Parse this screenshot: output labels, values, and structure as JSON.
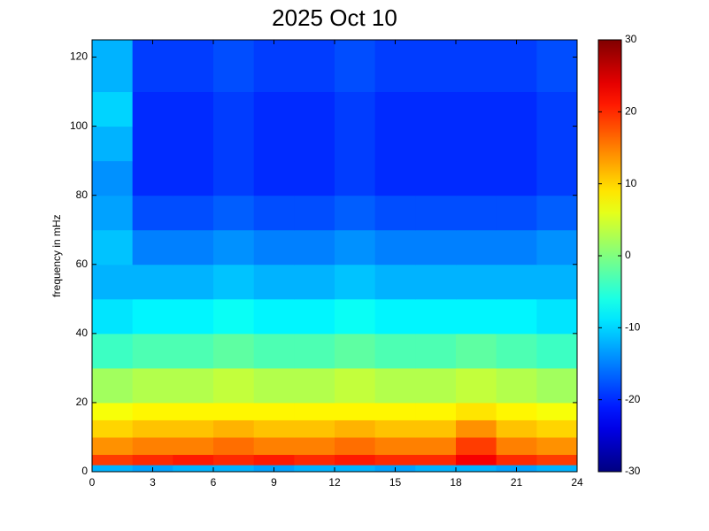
{
  "chart_data": {
    "type": "heatmap",
    "title": "2025 Oct 10",
    "y_label": "frequency in mHz",
    "xlim": [
      0,
      24
    ],
    "xticks": [
      0,
      3,
      6,
      9,
      12,
      15,
      18,
      21,
      24
    ],
    "ylim": [
      0,
      125
    ],
    "yticks": [
      0,
      20,
      40,
      60,
      80,
      100,
      120
    ],
    "zlim": [
      -30,
      30
    ],
    "zticks": [
      -30,
      -20,
      -10,
      0,
      10,
      20,
      30
    ],
    "colormap": "jet",
    "x_edges": [
      0,
      2,
      4,
      6,
      8,
      10,
      12,
      14,
      16,
      18,
      20,
      22,
      24
    ],
    "y_edges": [
      0,
      2,
      5,
      10,
      15,
      20,
      30,
      40,
      50,
      60,
      70,
      80,
      90,
      100,
      110,
      125
    ],
    "z": [
      [
        -12,
        -13,
        -12,
        -12,
        -13,
        -12,
        -12,
        -13,
        -12,
        -12,
        -13,
        -12
      ],
      [
        19,
        20,
        21,
        20,
        21,
        20,
        21,
        20,
        20,
        23,
        20,
        19
      ],
      [
        14,
        15,
        15,
        16,
        15,
        15,
        16,
        15,
        15,
        19,
        15,
        14
      ],
      [
        10,
        11,
        11,
        12,
        11,
        11,
        12,
        11,
        11,
        14,
        11,
        10
      ],
      [
        7,
        8,
        8,
        8,
        8,
        8,
        8,
        8,
        8,
        9,
        8,
        7
      ],
      [
        2,
        3,
        3,
        4,
        3,
        3,
        4,
        3,
        3,
        4,
        3,
        2
      ],
      [
        -4,
        -3,
        -3,
        -2,
        -3,
        -3,
        -2,
        -3,
        -3,
        -2,
        -3,
        -4
      ],
      [
        -9,
        -8,
        -8,
        -7,
        -8,
        -8,
        -7,
        -8,
        -8,
        -8,
        -8,
        -9
      ],
      [
        -12,
        -12,
        -12,
        -11,
        -12,
        -12,
        -11,
        -12,
        -12,
        -12,
        -12,
        -12
      ],
      [
        -11,
        -15,
        -15,
        -14,
        -15,
        -15,
        -14,
        -15,
        -15,
        -15,
        -15,
        -14
      ],
      [
        -13,
        -18,
        -18,
        -17,
        -18,
        -18,
        -17,
        -18,
        -18,
        -18,
        -18,
        -17
      ],
      [
        -14,
        -20,
        -20,
        -19,
        -20,
        -20,
        -19,
        -20,
        -20,
        -20,
        -20,
        -19
      ],
      [
        -12,
        -20,
        -20,
        -19,
        -20,
        -20,
        -19,
        -20,
        -20,
        -20,
        -20,
        -19
      ],
      [
        -10,
        -20,
        -20,
        -19,
        -20,
        -20,
        -19,
        -20,
        -20,
        -20,
        -20,
        -19
      ],
      [
        -12,
        -19,
        -19,
        -18,
        -19,
        -19,
        -18,
        -19,
        -19,
        -19,
        -19,
        -18
      ]
    ]
  }
}
